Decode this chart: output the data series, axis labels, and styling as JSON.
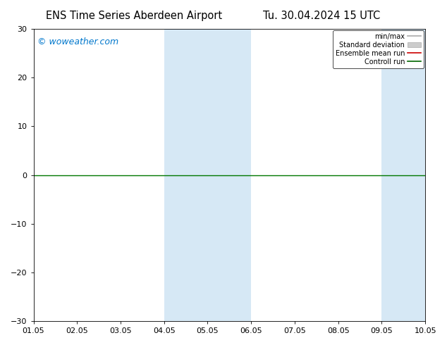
{
  "title_left": "ENS Time Series Aberdeen Airport",
  "title_right": "Tu. 30.04.2024 15 UTC",
  "ylim": [
    -30,
    30
  ],
  "yticks": [
    -30,
    -20,
    -10,
    0,
    10,
    20,
    30
  ],
  "xtick_labels": [
    "01.05",
    "02.05",
    "03.05",
    "04.05",
    "05.05",
    "06.05",
    "07.05",
    "08.05",
    "09.05",
    "10.05"
  ],
  "xtick_positions": [
    0,
    1,
    2,
    3,
    4,
    5,
    6,
    7,
    8,
    9
  ],
  "xlim": [
    0,
    9
  ],
  "shade_bands": [
    {
      "x_start": 3,
      "x_end": 5,
      "color": "#d6e8f5"
    },
    {
      "x_start": 8,
      "x_end": 9,
      "color": "#d6e8f5"
    }
  ],
  "watermark": "© woweather.com",
  "watermark_color": "#0077cc",
  "background_color": "#ffffff",
  "plot_bg_color": "#ffffff",
  "legend_items": [
    {
      "label": "min/max",
      "color": "#aaaaaa",
      "type": "line"
    },
    {
      "label": "Standard deviation",
      "color": "#cccccc",
      "type": "box"
    },
    {
      "label": "Ensemble mean run",
      "color": "#cc0000",
      "type": "line"
    },
    {
      "label": "Controll run",
      "color": "#006600",
      "type": "line"
    }
  ],
  "hline_y": 0,
  "hline_color": "#007700",
  "title_fontsize": 10.5,
  "tick_fontsize": 8,
  "watermark_fontsize": 9
}
